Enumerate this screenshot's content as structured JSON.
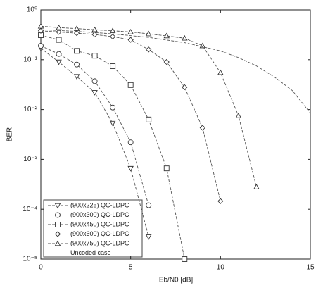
{
  "chart_data": {
    "type": "line",
    "y_label": "BER",
    "x_label": "Eb/N0 [dB]",
    "xlim": [
      0,
      15
    ],
    "xticks": [
      0,
      5,
      10,
      15
    ],
    "ylim": [
      1e-05,
      1
    ],
    "log_y": true,
    "yticks": [
      {
        "value": 1,
        "label": "10⁰"
      },
      {
        "value": 0.1,
        "label": "10⁻¹"
      },
      {
        "value": 0.01,
        "label": "10⁻²"
      },
      {
        "value": 0.001,
        "label": "10⁻³"
      },
      {
        "value": 0.0001,
        "label": "10⁻⁴"
      },
      {
        "value": 1e-05,
        "label": "10⁻⁵"
      }
    ],
    "legend": "lower left",
    "color": "#555",
    "series": [
      {
        "name": "(900x225) QC-LDPC",
        "marker": "triangle-down",
        "x": [
          0,
          1,
          2,
          3,
          4,
          5,
          6
        ],
        "values": [
          0.17,
          0.09,
          0.046,
          0.022,
          0.0053,
          0.00066,
          2.8e-05
        ]
      },
      {
        "name": "(900x300) QC-LDPC",
        "marker": "circle",
        "x": [
          0,
          1,
          2,
          3,
          4,
          5,
          6
        ],
        "values": [
          0.19,
          0.13,
          0.08,
          0.037,
          0.011,
          0.0022,
          0.00012
        ]
      },
      {
        "name": "(900x450) QC-LDPC",
        "marker": "square",
        "x": [
          0,
          1,
          2,
          3,
          4,
          5,
          6,
          7,
          8
        ],
        "values": [
          0.31,
          0.25,
          0.15,
          0.12,
          0.074,
          0.031,
          0.0063,
          0.00066,
          1e-05
        ]
      },
      {
        "name": "(900x600) QC-LDPC",
        "marker": "diamond",
        "x": [
          0,
          1,
          2,
          3,
          4,
          5,
          6,
          7,
          8,
          9,
          10
        ],
        "values": [
          0.38,
          0.36,
          0.34,
          0.32,
          0.29,
          0.25,
          0.16,
          0.09,
          0.028,
          0.0043,
          0.000145
        ]
      },
      {
        "name": "(900x750) QC-LDPC",
        "marker": "triangle-up",
        "x": [
          0,
          1,
          2,
          3,
          4,
          5,
          6,
          7,
          8,
          9,
          10,
          11,
          12
        ],
        "values": [
          0.47,
          0.44,
          0.42,
          0.4,
          0.38,
          0.36,
          0.33,
          0.3,
          0.27,
          0.19,
          0.055,
          0.0075,
          0.00028
        ]
      },
      {
        "name": "Uncoded case",
        "marker": null,
        "x": [
          0,
          2,
          4,
          6,
          8,
          10,
          11,
          12,
          13,
          14,
          15
        ],
        "values": [
          0.4,
          0.37,
          0.33,
          0.28,
          0.22,
          0.15,
          0.11,
          0.075,
          0.045,
          0.024,
          0.0085
        ]
      }
    ]
  }
}
